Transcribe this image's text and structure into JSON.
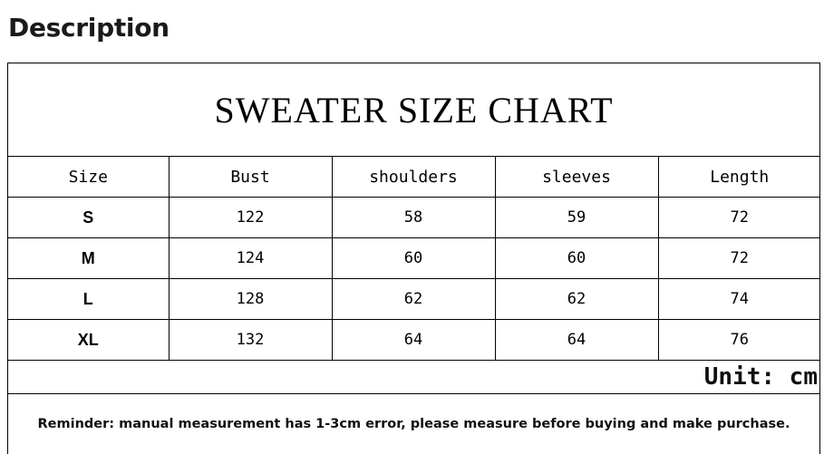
{
  "page": {
    "heading": "Description"
  },
  "chart": {
    "title": "SWEATER SIZE CHART",
    "unit": "Unit: cm",
    "reminder": "Reminder: manual measurement has 1-3cm error, please measure before buying and make purchase."
  },
  "chart_data": {
    "type": "table",
    "title": "SWEATER SIZE CHART",
    "columns": [
      "Size",
      "Bust",
      "shoulders",
      "sleeves",
      "Length"
    ],
    "rows": [
      [
        "S",
        "122",
        "58",
        "59",
        "72"
      ],
      [
        "M",
        "124",
        "60",
        "60",
        "72"
      ],
      [
        "L",
        "128",
        "62",
        "62",
        "74"
      ],
      [
        "XL",
        "132",
        "64",
        "64",
        "76"
      ]
    ],
    "unit": "Unit: cm"
  }
}
